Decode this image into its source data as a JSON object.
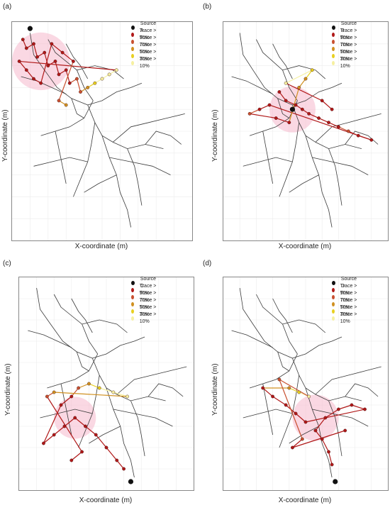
{
  "axis": {
    "xlabel": "X-coordinate (m)",
    "ylabel": "Y-coordinate (m)"
  },
  "legend_colors": {
    "source": "#111111",
    "t90": "#b01818",
    "t70": "#c85030",
    "t50": "#d09020",
    "t30": "#e8d020",
    "t10": "#f6f0a0"
  },
  "network_color": "#3a3a3a",
  "halo_color": "#f6b8cc",
  "panels": [
    {
      "label": "(a)",
      "legend": [
        "Source A",
        "Trace > 90%",
        "Trace > 70%",
        "Trace > 50%",
        "Trace > 30%",
        "Trace > 10%"
      ]
    },
    {
      "label": "(b)",
      "legend": [
        "Source B",
        "Trace > 90%",
        "Trace > 70%",
        "Trace > 50%",
        "Trace > 30%",
        "Trace > 10%"
      ]
    },
    {
      "label": "(c)",
      "legend": [
        "Source C",
        "Trace > 90%",
        "Trace > 70%",
        "Trace > 50%",
        "Trace > 30%",
        "Trace > 10%"
      ]
    },
    {
      "label": "(d)",
      "legend": [
        "Source D",
        "Trace > 90%",
        "Trace > 70%",
        "Trace > 50%",
        "Trace > 30%",
        "Trace > 10%"
      ]
    }
  ]
}
